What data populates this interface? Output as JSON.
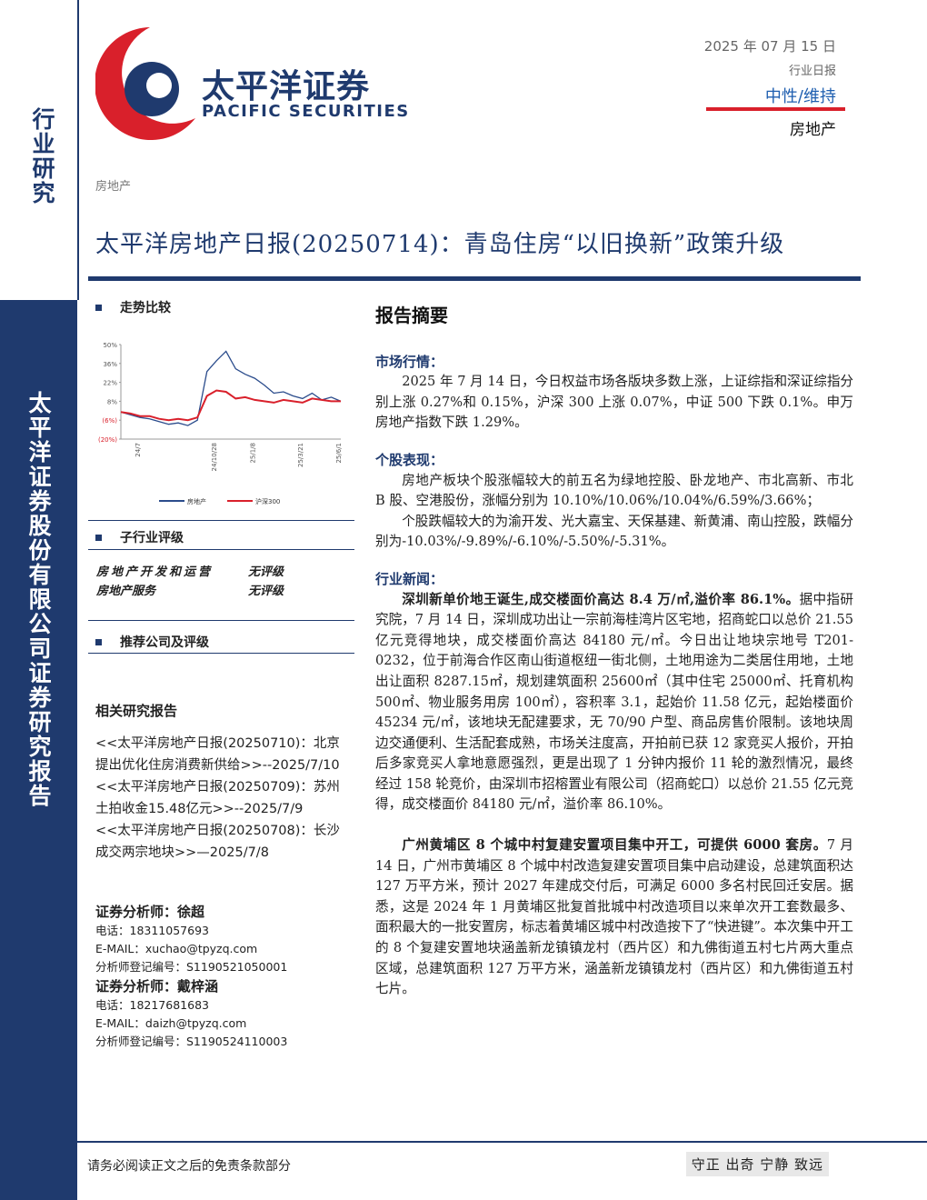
{
  "sidebar": {
    "top": "行业研究",
    "bottom": "太平洋证券股份有限公司证券研究报告"
  },
  "header": {
    "logo_cn": "太平洋证券",
    "logo_en": "PACIFIC SECURITIES",
    "date": "2025 年 07 月 15 日",
    "report_type": "行业日报",
    "rating": "中性/维持",
    "industry": "房地产"
  },
  "category": "房地产",
  "title": "太平洋房地产日报(20250714)：青岛住房“以旧换新”政策升级",
  "trend": {
    "heading": "走势比较",
    "chart_data": {
      "type": "line",
      "categories": [
        null,
        null,
        "24/7",
        null,
        null,
        null,
        null,
        null,
        null,
        null,
        "24/10/28",
        null,
        null,
        null,
        "25/1/8",
        null,
        null,
        null,
        null,
        "25/3/21",
        null,
        null,
        null,
        "25/6/1"
      ],
      "series": [
        {
          "name": "房地产",
          "color": "#2b4c8c",
          "values": [
            0,
            -2,
            -4,
            -5,
            -7,
            -9,
            -8,
            -10,
            -6,
            30,
            38,
            45,
            32,
            28,
            25,
            20,
            14,
            15,
            12,
            10,
            14,
            9,
            11,
            8
          ]
        },
        {
          "name": "沪深300",
          "color": "#d9202b",
          "values": [
            0,
            -1,
            -3,
            -3,
            -5,
            -6,
            -5,
            -6,
            -4,
            12,
            16,
            15,
            10,
            11,
            9,
            8,
            7,
            9,
            8,
            7,
            10,
            9,
            8,
            8
          ]
        }
      ],
      "ylim": [
        -20,
        50
      ],
      "yticks": [
        {
          "value": 50,
          "label": "50%"
        },
        {
          "value": 36,
          "label": "36%"
        },
        {
          "value": 22,
          "label": "22%"
        },
        {
          "value": 8,
          "label": "8%"
        },
        {
          "value": -6,
          "label": "(6%)"
        },
        {
          "value": -20,
          "label": "(20%)"
        }
      ]
    }
  },
  "sub_rating": {
    "heading": "子行业评级",
    "rows": [
      [
        "房地产开发和运营",
        "无评级"
      ],
      [
        "房地产服务",
        "无评级"
      ]
    ]
  },
  "recommend": {
    "heading": "推荐公司及评级"
  },
  "related": {
    "heading": "相关研究报告",
    "items": [
      "<<太平洋房地产日报(20250710)：北京提出优化住房消费新供给>>--2025/7/10",
      "<<太平洋房地产日报(20250709)：苏州土拍收金15.48亿元>>--2025/7/9",
      "<<太平洋房地产日报(20250708)：长沙成交两宗地块>>—2025/7/8"
    ]
  },
  "analysts": [
    {
      "title": "证券分析师：徐超",
      "phone": "电话：18311057693",
      "email": "E-MAIL：xuchao@tpyzq.com",
      "reg": "分析师登记编号：S1190521050001"
    },
    {
      "title": "证券分析师：戴梓涵",
      "phone": "电话：18217681683",
      "email": "E-MAIL：daizh@tpyzq.com",
      "reg": "分析师登记编号：S1190524110003"
    }
  ],
  "summary": {
    "heading": "报告摘要",
    "market": {
      "heading": "市场行情：",
      "paragraphs": [
        "2025 年 7 月 14 日，今日权益市场各版块多数上涨，上证综指和深证综指分别上涨 0.27%和 0.15%，沪深 300 上涨 0.07%，中证 500 下跌 0.1%。申万房地产指数下跌 1.29%。"
      ]
    },
    "stocks": {
      "heading": "个股表现：",
      "paragraphs": [
        "房地产板块个股涨幅较大的前五名为绿地控股、卧龙地产、市北高新、市北 B 股、空港股份，涨幅分别为 10.10%/10.06%/10.04%/6.59%/3.66%；",
        "个股跌幅较大的为渝开发、光大嘉宝、天保基建、新黄浦、南山控股，跌幅分别为-10.03%/-9.89%/-6.10%/-5.50%/-5.31%。"
      ]
    },
    "news": {
      "heading": "行业新闻：",
      "items": [
        {
          "lead": "深圳新单价地王诞生,成交楼面价高达 8.4 万/㎡,溢价率 86.1%。",
          "body": "据中指研究院，7 月 14 日，深圳成功出让一宗前海桂湾片区宅地，招商蛇口以总价 21.55 亿元竞得地块，成交楼面价高达 84180 元/㎡。今日出让地块宗地号 T201-0232，位于前海合作区南山街道枢纽一街北侧，土地用途为二类居住用地，土地出让面积 8287.15㎡，规划建筑面积 25600㎡（其中住宅 25000㎡、托育机构 500㎡、物业服务用房 100㎡），容积率 3.1，起始价 11.58 亿元，起始楼面价 45234 元/㎡，该地块无配建要求，无 70/90 户型、商品房售价限制。该地块周边交通便利、生活配套成熟，市场关注度高，开拍前已获 12 家竞买人报价，开拍后多家竞买人拿地意愿强烈，更是出现了 1 分钟内报价 11 轮的激烈情况，最终经过 158 轮竞价，由深圳市招榕置业有限公司（招商蛇口）以总价 21.55 亿元竞得，成交楼面价 84180 元/㎡，溢价率 86.10%。"
        },
        {
          "lead": "广州黄埔区 8 个城中村复建安置项目集中开工，可提供 6000 套房。",
          "body": "7 月 14 日，广州市黄埔区 8 个城中村改造复建安置项目集中启动建设，总建筑面积达 127 万平方米，预计 2027 年建成交付后，可满足 6000 多名村民回迁安居。据悉，这是 2024 年 1 月黄埔区批复首批城中村改造项目以来单次开工套数最多、面积最大的一批安置房，标志着黄埔区城中村改造按下了“快进键”。本次集中开工的 8 个复建安置地块涵盖新龙镇镇龙村（西片区）和九佛街道五村七片两大重点区域，总建筑面积 127 万平方米，涵盖新龙镇镇龙村（西片区）和九佛街道五村七片。"
        }
      ]
    }
  },
  "footer": {
    "disclaimer": "请务必阅读正文之后的免责条款部分",
    "motto": "守正 出奇 宁静 致远"
  }
}
